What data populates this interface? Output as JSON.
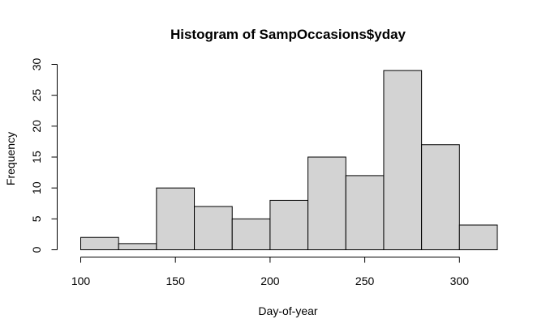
{
  "chart_data": {
    "type": "bar",
    "title": "Histogram of SampOccasions$yday",
    "xlabel": "Day-of-year",
    "ylabel": "Frequency",
    "bins": [
      {
        "from": 100,
        "to": 120,
        "count": 2
      },
      {
        "from": 120,
        "to": 140,
        "count": 1
      },
      {
        "from": 140,
        "to": 160,
        "count": 10
      },
      {
        "from": 160,
        "to": 180,
        "count": 7
      },
      {
        "from": 180,
        "to": 200,
        "count": 5
      },
      {
        "from": 200,
        "to": 220,
        "count": 8
      },
      {
        "from": 220,
        "to": 240,
        "count": 15
      },
      {
        "from": 240,
        "to": 260,
        "count": 12
      },
      {
        "from": 260,
        "to": 280,
        "count": 29
      },
      {
        "from": 280,
        "to": 300,
        "count": 17
      },
      {
        "from": 300,
        "to": 320,
        "count": 4
      }
    ],
    "xticks": [
      100,
      150,
      200,
      250,
      300
    ],
    "yticks": [
      0,
      5,
      10,
      15,
      20,
      25,
      30
    ],
    "xlim": [
      100,
      320
    ],
    "ylim": [
      0,
      30
    ],
    "bar_color": "#d3d3d3",
    "grid": false
  }
}
